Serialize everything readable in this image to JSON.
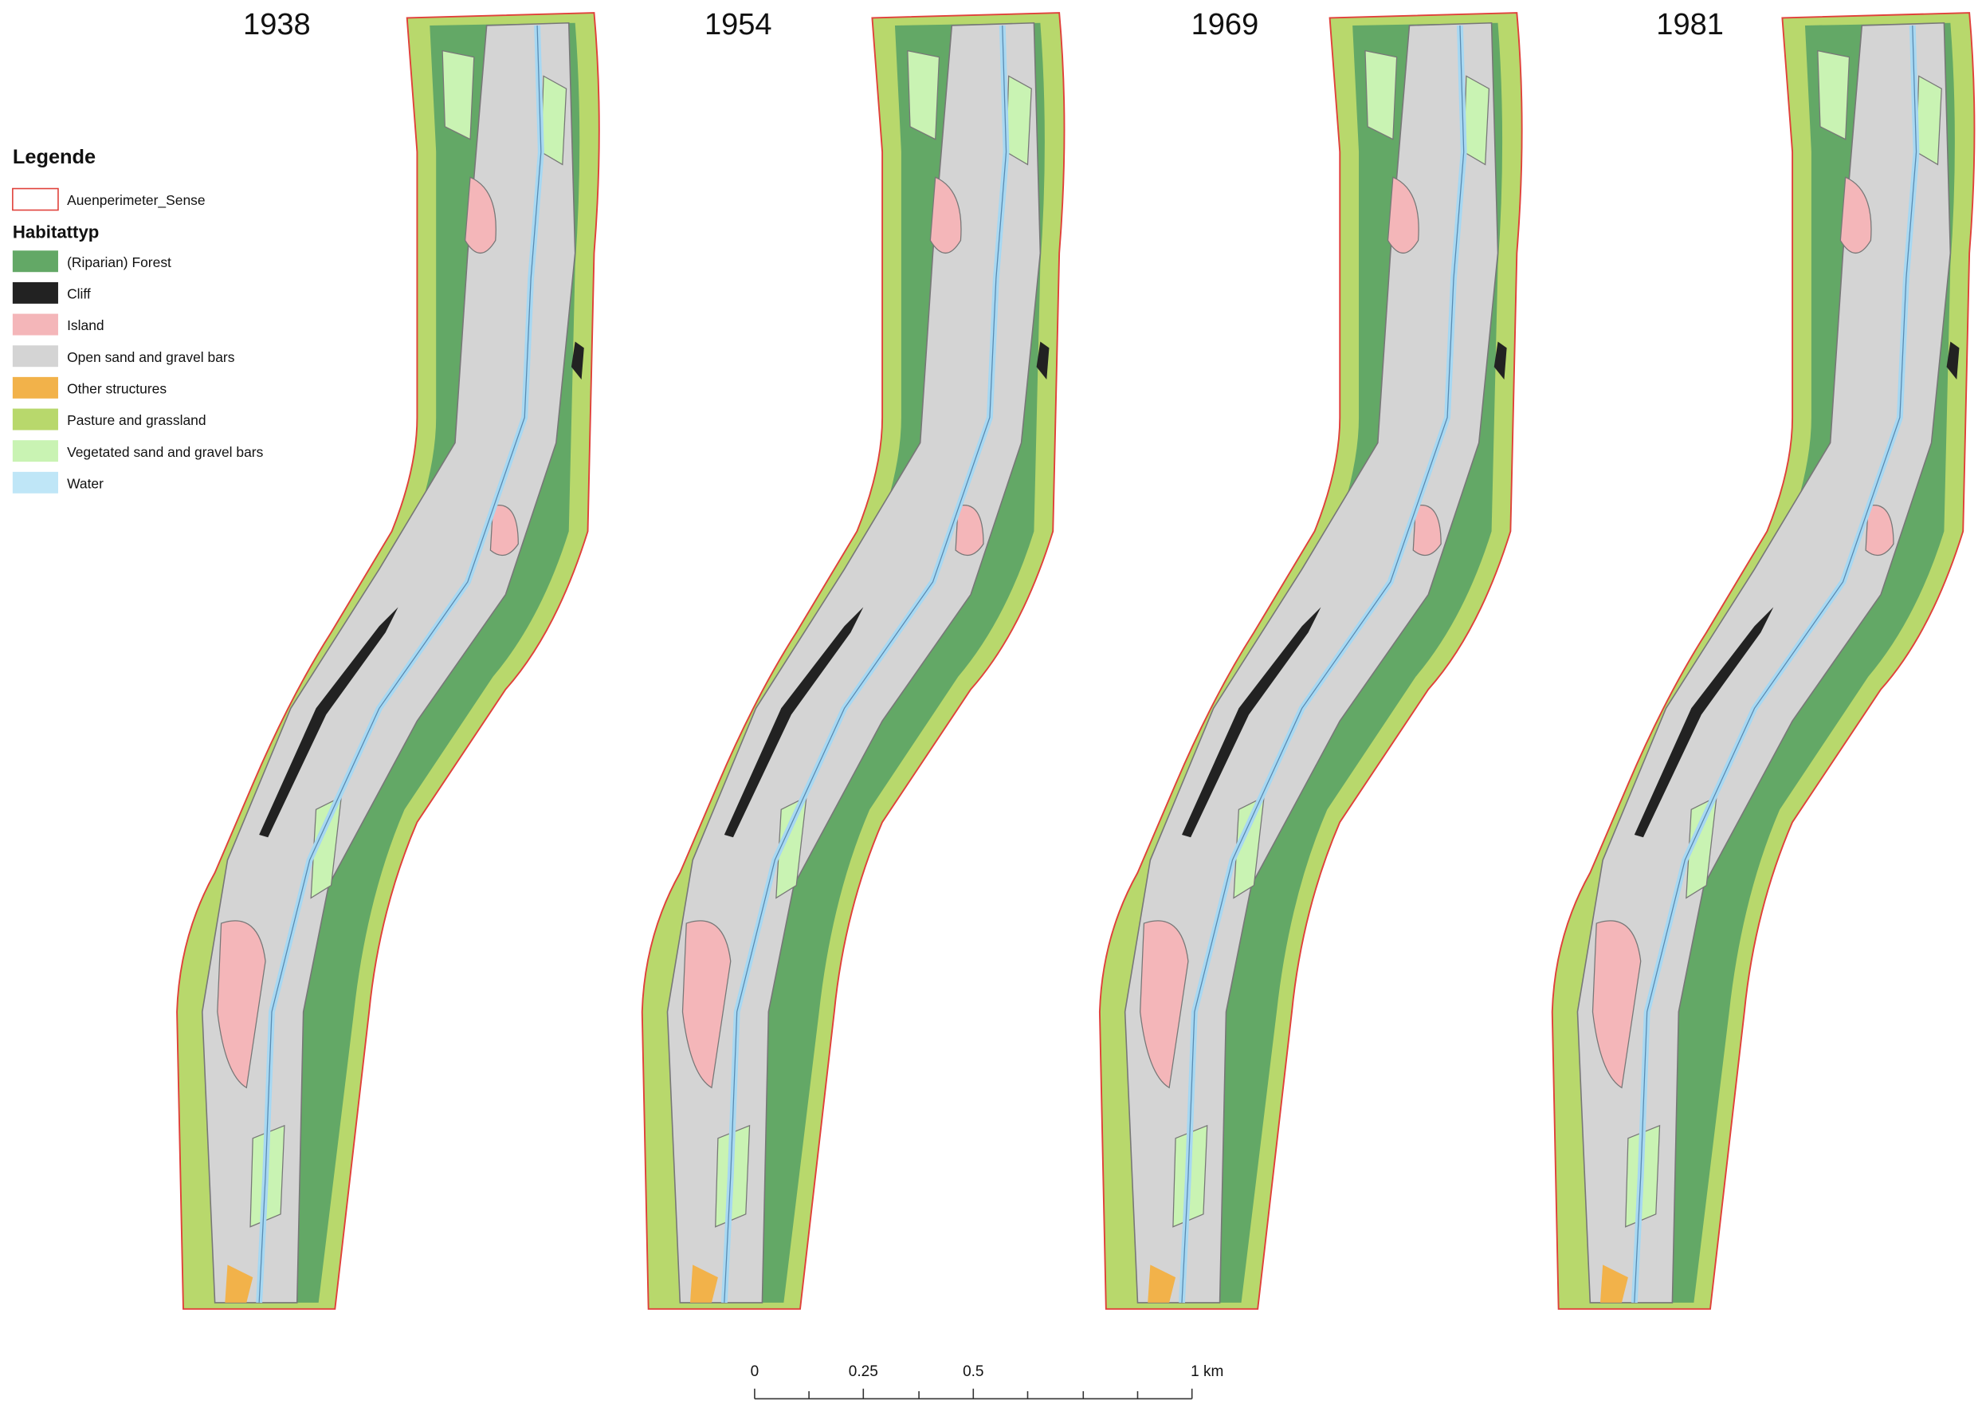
{
  "maps": [
    {
      "year": "1938"
    },
    {
      "year": "1954"
    },
    {
      "year": "1969"
    },
    {
      "year": "1981"
    }
  ],
  "legend": {
    "title": "Legende",
    "perimeter": "Auenperimeter_Sense",
    "group": "Habitattyp",
    "items": [
      "(Riparian) Forest",
      "Cliff",
      "Island",
      "Open sand and gravel bars",
      "Other structures",
      "Pasture and grassland",
      "Vegetated sand and gravel bars",
      "Water"
    ]
  },
  "scale_bar": {
    "labels": [
      "0",
      "0.25",
      "0.5",
      "1 km"
    ]
  }
}
